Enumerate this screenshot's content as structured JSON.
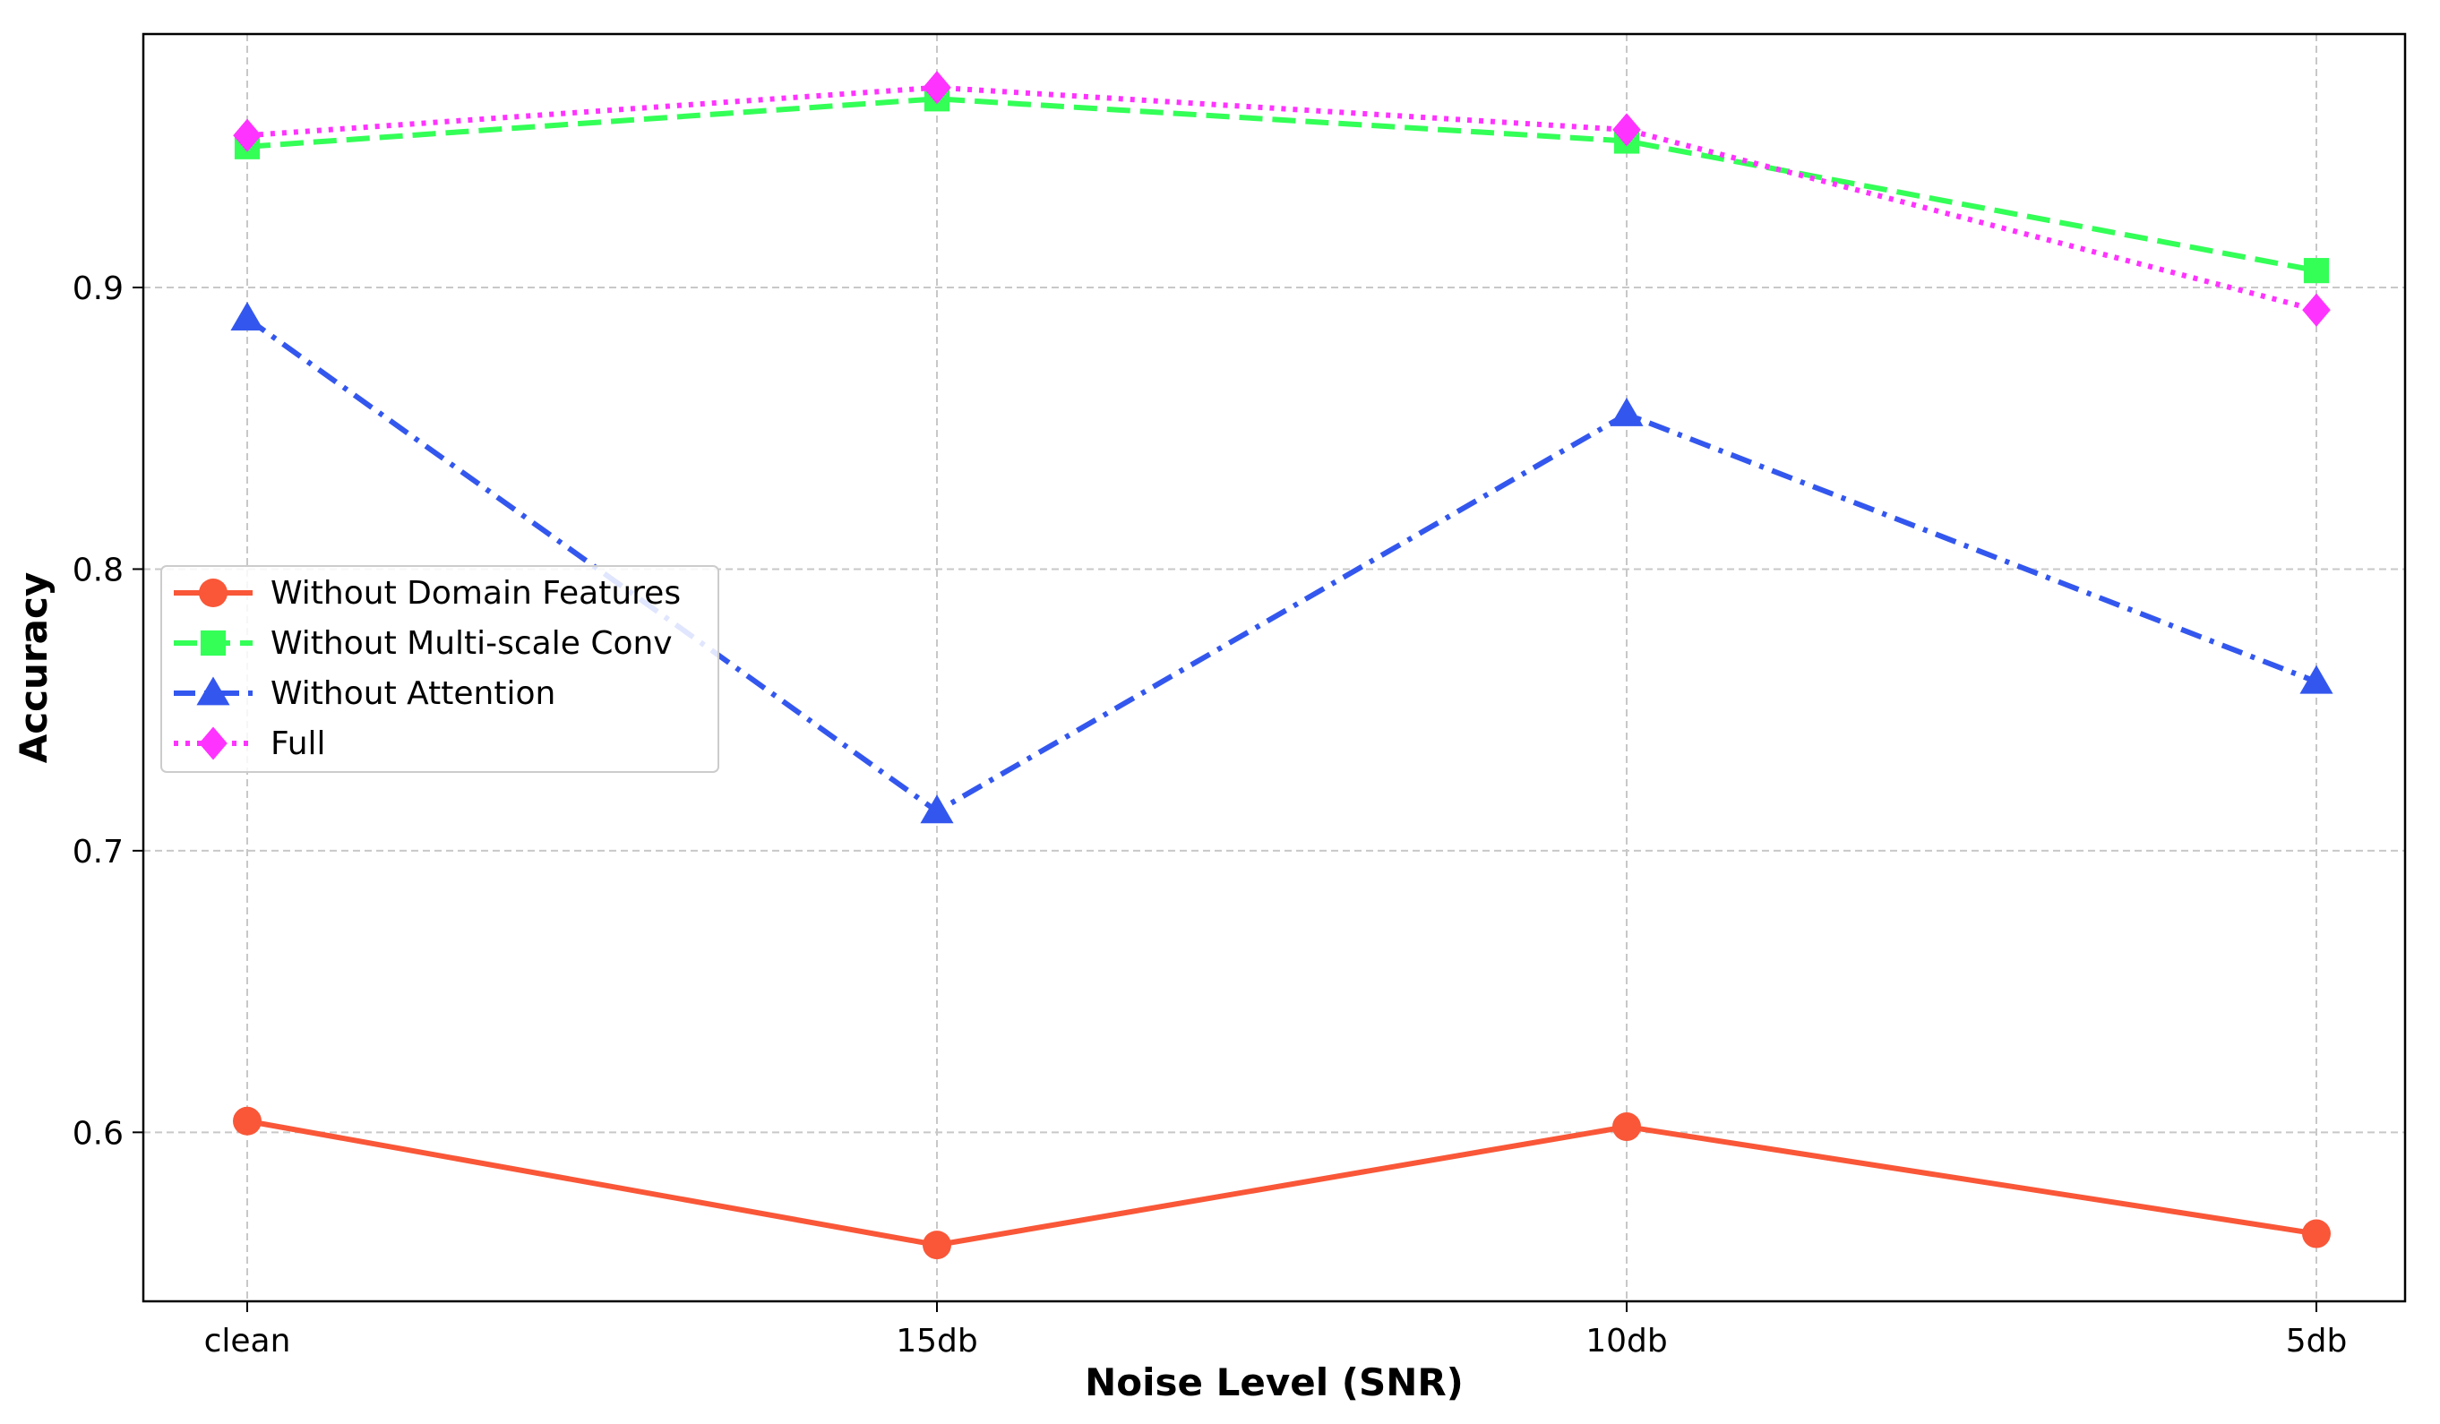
{
  "chart_data": {
    "type": "line",
    "title": "",
    "xlabel": "Noise Level (SNR)",
    "ylabel": "Accuracy",
    "categories": [
      "clean",
      "15db",
      "10db",
      "5db"
    ],
    "ylim": [
      0.54,
      0.99
    ],
    "yticks": [
      0.6,
      0.7,
      0.8,
      0.9
    ],
    "grid": true,
    "legend_position": "center-left",
    "series": [
      {
        "name": "Without Domain Features",
        "values": [
          0.604,
          0.56,
          0.602,
          0.564
        ],
        "color": "#f95738",
        "marker": "circle",
        "linestyle": "solid"
      },
      {
        "name": "Without Multi-scale Conv",
        "values": [
          0.95,
          0.967,
          0.952,
          0.906
        ],
        "color": "#33ff57",
        "marker": "square",
        "linestyle": "dashed"
      },
      {
        "name": "Without Attention",
        "values": [
          0.889,
          0.714,
          0.855,
          0.76
        ],
        "color": "#3357ee",
        "marker": "triangle",
        "linestyle": "dashdot"
      },
      {
        "name": "Full",
        "values": [
          0.954,
          0.971,
          0.956,
          0.892
        ],
        "color": "#ff33ff",
        "marker": "diamond",
        "linestyle": "dotted"
      }
    ]
  }
}
